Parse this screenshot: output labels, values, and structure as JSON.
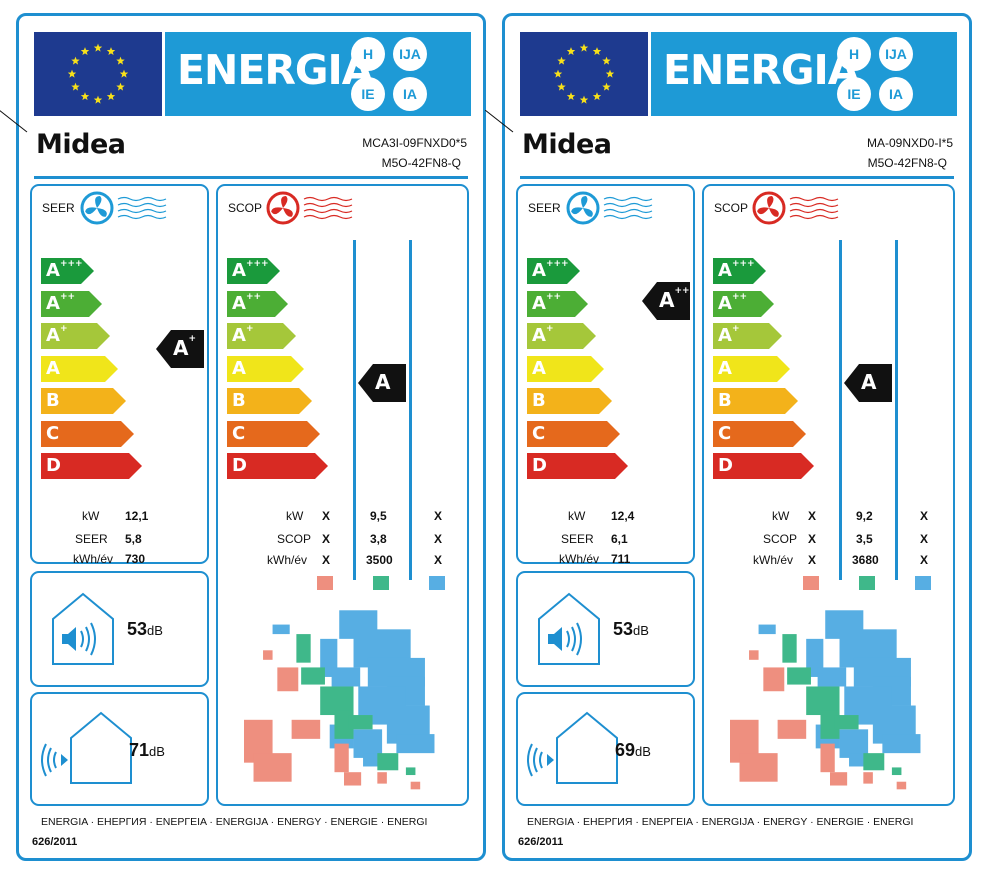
{
  "labels": [
    {
      "energia_title": "ENERGIA",
      "lang_bubbles": [
        "H",
        "IJA",
        "IE",
        "IA"
      ],
      "brand": "Midea",
      "model_indoor": "MCA3I-09FNXD0*5",
      "model_outdoor": "M5O-42FN8-Q",
      "seer": {
        "title": "SEER",
        "scale": [
          "A+++",
          "A++",
          "A+",
          "A",
          "B",
          "C",
          "D"
        ],
        "class": "A+",
        "kw_label": "kW",
        "kw": "12,1",
        "seer_label": "SEER",
        "seer_value": "5,8",
        "kwh_label": "kWh/év",
        "kwh": "730"
      },
      "scop": {
        "title": "SCOP",
        "scale": [
          "A+++",
          "A++",
          "A+",
          "A",
          "B",
          "C",
          "D"
        ],
        "class": "A",
        "row_labels": [
          "kW",
          "SCOP",
          "kWh/év"
        ],
        "warmer": [
          "X",
          "X",
          "X"
        ],
        "average": [
          "9,5",
          "3,8",
          "3500"
        ],
        "colder": [
          "X",
          "X",
          "X"
        ]
      },
      "noise_indoor": "53",
      "noise_outdoor": "71",
      "db_unit": "dB",
      "footer": "ENERGIA · ЕНЕРГИЯ · ΕΝΕΡΓΕΙΑ · ENERGIJA · ENERGY · ENERGIE · ENERGI",
      "regulation": "626/2011"
    },
    {
      "energia_title": "ENERGIA",
      "lang_bubbles": [
        "H",
        "IJA",
        "IE",
        "IA"
      ],
      "brand": "Midea",
      "model_indoor": "MA-09NXD0-I*5",
      "model_outdoor": "M5O-42FN8-Q",
      "seer": {
        "title": "SEER",
        "scale": [
          "A+++",
          "A++",
          "A+",
          "A",
          "B",
          "C",
          "D"
        ],
        "class": "A++",
        "kw_label": "kW",
        "kw": "12,4",
        "seer_label": "SEER",
        "seer_value": "6,1",
        "kwh_label": "kWh/év",
        "kwh": "711"
      },
      "scop": {
        "title": "SCOP",
        "scale": [
          "A+++",
          "A++",
          "A+",
          "A",
          "B",
          "C",
          "D"
        ],
        "class": "A",
        "row_labels": [
          "kW",
          "SCOP",
          "kWh/év"
        ],
        "warmer": [
          "X",
          "X",
          "X"
        ],
        "average": [
          "9,2",
          "3,5",
          "3680"
        ],
        "colder": [
          "X",
          "X",
          "X"
        ]
      },
      "noise_indoor": "53",
      "noise_outdoor": "69",
      "db_unit": "dB",
      "footer": "ENERGIA · ЕНЕРГИЯ · ΕΝΕΡΓΕΙΑ · ENERGIJA · ENERGY · ENERGIE · ENERGI",
      "regulation": "626/2011"
    }
  ],
  "colors": {
    "border": "#1e8fd0",
    "energia_bg": "#1e9ad6",
    "eu_blue": "#1e3a8f",
    "eu_star": "#f7e01a",
    "scale": [
      "#1a9a3c",
      "#4cae35",
      "#a5c73a",
      "#f0e51a",
      "#f3b21a",
      "#e5691c",
      "#d82a23"
    ],
    "zone_warm": "#ee8f7f",
    "zone_avg": "#3fb88a",
    "zone_cold": "#57aee3"
  }
}
